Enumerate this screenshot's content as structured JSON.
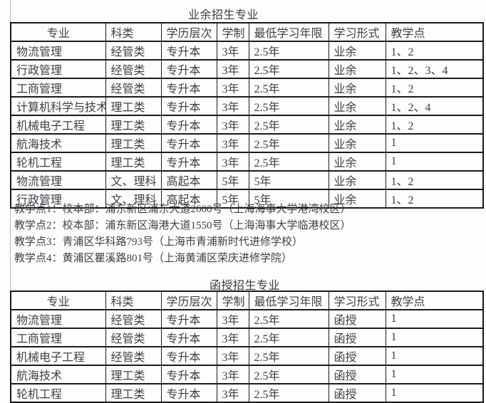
{
  "colors": {
    "text": "#3c3f45",
    "table_border": "#1a1a1a",
    "page_background": "#fdfdfe",
    "margin_line": "#b8b8b8"
  },
  "tables": [
    {
      "title": "业余招生专业",
      "columns": [
        "专业",
        "科类",
        "学历层次",
        "学制",
        "最低学习年限",
        "学习形式",
        "教学点"
      ],
      "rows": [
        [
          "物流管理",
          "经管类",
          "专升本",
          "3年",
          "2.5年",
          "业余",
          "1、2"
        ],
        [
          "行政管理",
          "经管类",
          "专升本",
          "3年",
          "2.5年",
          "业余",
          "1、2、3、4"
        ],
        [
          "工商管理",
          "经管类",
          "专升本",
          "3年",
          "2.5年",
          "业余",
          "1、2"
        ],
        [
          "计算机科学与技术",
          "理工类",
          "专升本",
          "3年",
          "2.5年",
          "业余",
          "1、2、4"
        ],
        [
          "机械电子工程",
          "理工类",
          "专升本",
          "3年",
          "2.5年",
          "业余",
          "1、2"
        ],
        [
          "航海技术",
          "理工类",
          "专升本",
          "3年",
          "2.5年",
          "业余",
          "1"
        ],
        [
          "轮机工程",
          "理工类",
          "专升本",
          "3年",
          "2.5年",
          "业余",
          "1"
        ],
        [
          "物流管理",
          "文、理科",
          "高起本",
          "5年",
          "5年",
          "业余",
          "1、2"
        ],
        [
          "行政管理",
          "文、理科",
          "高起本",
          "5年",
          "5年",
          "业余",
          "1、2"
        ]
      ]
    },
    {
      "title": "函授招生专业",
      "columns": [
        "专业",
        "科类",
        "学历层次",
        "学制",
        "最低学习年限",
        "学习形式",
        "教学点"
      ],
      "rows": [
        [
          "物流管理",
          "经管类",
          "专升本",
          "3年",
          "2.5年",
          "函授",
          "1"
        ],
        [
          "工商管理",
          "经管类",
          "专升本",
          "3年",
          "2.5年",
          "函授",
          "1"
        ],
        [
          "机械电子工程",
          "经管类",
          "专升本",
          "3年",
          "2.5年",
          "函授",
          "1"
        ],
        [
          "航海技术",
          "理工类",
          "专升本",
          "3年",
          "2.5年",
          "函授",
          "1"
        ],
        [
          "轮机工程",
          "理工类",
          "专升本",
          "3年",
          "2.5年",
          "函授",
          "1"
        ]
      ]
    }
  ],
  "notes": [
    "教学点1：校本部：浦东新区浦东大道2600号（上海海事大学港湾校区）",
    "教学点2：校本部：浦东新区海港大道1550号（上海海事大学临港校区）",
    "教学点3：青浦区华科路793号（上海市青浦新时代进修学校）",
    "教学点4：黄浦区瞿溪路801号（上海黄浦区荣庆进修学院）"
  ]
}
